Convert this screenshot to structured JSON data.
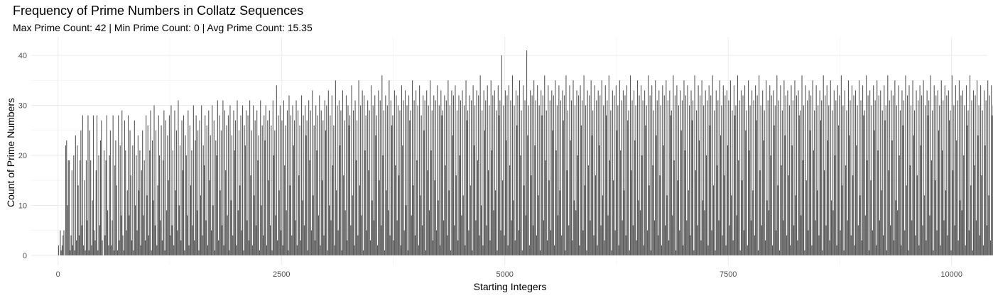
{
  "chart_data": {
    "type": "bar",
    "title": "Frequency of Prime Numbers in Collatz Sequences",
    "subtitle": "Max Prime Count: 42 | Min Prime Count: 0 | Avg Prime Count: 15.35",
    "xlabel": "Starting Integers",
    "ylabel": "Count of Prime Numbers",
    "xlim": [
      -300,
      10400
    ],
    "ylim": [
      -2,
      43.7
    ],
    "x_ticks": [
      0,
      2500,
      5000,
      7500,
      10000
    ],
    "x_tick_labels": [
      "0",
      "2500",
      "5000",
      "7500",
      "10000"
    ],
    "y_ticks": [
      0,
      10,
      20,
      30,
      40
    ],
    "y_tick_labels": [
      "0",
      "10",
      "20",
      "30",
      "40"
    ],
    "grid": true,
    "bar_color": "#595959",
    "x_range": [
      1,
      10000
    ],
    "bin_width": 10,
    "values": [
      2,
      0,
      5,
      1,
      2,
      4,
      5,
      0,
      22,
      23,
      10,
      19,
      19,
      1,
      4,
      17,
      2,
      20,
      1,
      24,
      3,
      22,
      14,
      4,
      19,
      25,
      6,
      28,
      2,
      15,
      1,
      19,
      7,
      28,
      1,
      25,
      19,
      2,
      11,
      28,
      5,
      3,
      17,
      28,
      1,
      20,
      6,
      23,
      27,
      3,
      0,
      21,
      4,
      19,
      28,
      9,
      2,
      20,
      25,
      2,
      7,
      28,
      1,
      18,
      23,
      14,
      1,
      28,
      3,
      22,
      8,
      29,
      4,
      1,
      27,
      21,
      5,
      13,
      28,
      8,
      25,
      16,
      3,
      22,
      1,
      27,
      10,
      20,
      5,
      24,
      13,
      21,
      2,
      17,
      25,
      8,
      19,
      3,
      28,
      12,
      26,
      4,
      21,
      29,
      1,
      23,
      11,
      30,
      6,
      25,
      2,
      14,
      28,
      20,
      7,
      26,
      3,
      19,
      29,
      1,
      27,
      9,
      24,
      15,
      28,
      4,
      30,
      6,
      21,
      2,
      29,
      13,
      25,
      5,
      31,
      10,
      22,
      3,
      27,
      17,
      28,
      1,
      24,
      20,
      8,
      29,
      2,
      26,
      14,
      21,
      6,
      30,
      3,
      23,
      28,
      9,
      25,
      1,
      27,
      12,
      30,
      4,
      22,
      18,
      28,
      7,
      26,
      2,
      29,
      15,
      24,
      5,
      30,
      10,
      27,
      1,
      23,
      20,
      31,
      3,
      28,
      13,
      25,
      6,
      31,
      2,
      29,
      17,
      26,
      8,
      28,
      1,
      30,
      11,
      24,
      4,
      29,
      21,
      27,
      2,
      31,
      9,
      25,
      14,
      28,
      5,
      30,
      1,
      26,
      22,
      29,
      7,
      28,
      3,
      31,
      16,
      25,
      2,
      30,
      12,
      27,
      6,
      29,
      19,
      24,
      1,
      31,
      10,
      26,
      4,
      28,
      23,
      30,
      2,
      27,
      15,
      29,
      6,
      26,
      1,
      31,
      20,
      25,
      8,
      34,
      3,
      28,
      13,
      30,
      5,
      27,
      2,
      31,
      18,
      26,
      9,
      29,
      1,
      32,
      14,
      28,
      4,
      30,
      22,
      27,
      7,
      31,
      2,
      29,
      16,
      26,
      3,
      32,
      11,
      28,
      6,
      30,
      24,
      27,
      1,
      31,
      19,
      29,
      5,
      33,
      12,
      26,
      3,
      30,
      21,
      28,
      8,
      32,
      2,
      29,
      15,
      27,
      4,
      31,
      25,
      30,
      1,
      33,
      10,
      28,
      7,
      32,
      18,
      26,
      2,
      35,
      13,
      30,
      5,
      31,
      22,
      29,
      1,
      33,
      16,
      27,
      9,
      32,
      3,
      30,
      26,
      28,
      6,
      34,
      12,
      29,
      2,
      31,
      19,
      27,
      4,
      35,
      14,
      30,
      8,
      33,
      1,
      32,
      21,
      28,
      5,
      31,
      17,
      29,
      3,
      34,
      11,
      30,
      7,
      32,
      24,
      28,
      2,
      33,
      15,
      31,
      6,
      36,
      20,
      29,
      1,
      32,
      13,
      30,
      9,
      35,
      4,
      31,
      26,
      28,
      3,
      33,
      18,
      32,
      7,
      30,
      16,
      29,
      2,
      34,
      22,
      31,
      5,
      33,
      10,
      30,
      1,
      32,
      27,
      29,
      8,
      35,
      14,
      31,
      4,
      33,
      19,
      30,
      2,
      34,
      12,
      28,
      6,
      32,
      25,
      31,
      1,
      33,
      17,
      30,
      9,
      35,
      21,
      29,
      3,
      32,
      15,
      31,
      5,
      34,
      11,
      30,
      2,
      33,
      28,
      29,
      7,
      32,
      18,
      31,
      4,
      35,
      13,
      30,
      1,
      33,
      24,
      32,
      6,
      34,
      16,
      29,
      3,
      32,
      20,
      31,
      8,
      33,
      12,
      30,
      2,
      35,
      27,
      29,
      5,
      32,
      14,
      31,
      1,
      34,
      22,
      30,
      7,
      33,
      19,
      32,
      4,
      36,
      10,
      29,
      2,
      33,
      25,
      31,
      6,
      34,
      17,
      30,
      3,
      35,
      21,
      32,
      9,
      33,
      13,
      29,
      1,
      34,
      28,
      31,
      5,
      40,
      15,
      30,
      4,
      33,
      23,
      32,
      2,
      34,
      18,
      31,
      7,
      36,
      11,
      30,
      3,
      33,
      26,
      32,
      5,
      35,
      20,
      29,
      1,
      34,
      14,
      31,
      8,
      41,
      24,
      30,
      2,
      33,
      16,
      32,
      6,
      35,
      22,
      31,
      4,
      34,
      12,
      30,
      1,
      33,
      28,
      32,
      7,
      36,
      19,
      29,
      3,
      34,
      15,
      31,
      5,
      33,
      25,
      32,
      2,
      35,
      21,
      30,
      8,
      34,
      13,
      31,
      4,
      33,
      27,
      32,
      1,
      36,
      17,
      29,
      6,
      34,
      23,
      31,
      3,
      35,
      11,
      30,
      9,
      33,
      20,
      32,
      2,
      34,
      26,
      31,
      5,
      36,
      14,
      30,
      1,
      33,
      18,
      32,
      7,
      35,
      24,
      29,
      4,
      34,
      16,
      31,
      2,
      33,
      22,
      32,
      6,
      35,
      12,
      30,
      3,
      34,
      28,
      31,
      8,
      36,
      19,
      29,
      1,
      33,
      15,
      32,
      5,
      34,
      25,
      30,
      2,
      35,
      21,
      31,
      7,
      33,
      13,
      32,
      4,
      34,
      27,
      29,
      1,
      36,
      17,
      31,
      6,
      33,
      23,
      30,
      3,
      35,
      11,
      32,
      9,
      34,
      20,
      31,
      2,
      33,
      26,
      30,
      5,
      36,
      14,
      32,
      1,
      34,
      18,
      29,
      7,
      35,
      24,
      31,
      4,
      33,
      16,
      30,
      2,
      34,
      22,
      32,
      6,
      35,
      12,
      31,
      3,
      33,
      28,
      29,
      8,
      36,
      19,
      32,
      1,
      34,
      15,
      30,
      5,
      33,
      25,
      31,
      2,
      35,
      21,
      32,
      7,
      34,
      13,
      30,
      4,
      33,
      27,
      31,
      1,
      36,
      17,
      29,
      6,
      34,
      23,
      32,
      3,
      35,
      11,
      30,
      9,
      33,
      20,
      31,
      2,
      34,
      26,
      32,
      5,
      36,
      14,
      29,
      1,
      33,
      18,
      31,
      7,
      35,
      24,
      30,
      4,
      34,
      16,
      32,
      2,
      33,
      22,
      31,
      6,
      35,
      12,
      29,
      3,
      34,
      28,
      30,
      8,
      36,
      19,
      31,
      1,
      33,
      15,
      32,
      5,
      34,
      25,
      29,
      2,
      35,
      21,
      30,
      7,
      33,
      13,
      31,
      4,
      34,
      27,
      32,
      1,
      36,
      17,
      30,
      6,
      33,
      23,
      29,
      3,
      35,
      11,
      31,
      9,
      34,
      20,
      32,
      2,
      33,
      26,
      30,
      5,
      36,
      14,
      31,
      1,
      34,
      18,
      29,
      7,
      35,
      24,
      32,
      4,
      33,
      16,
      30,
      2,
      34,
      22,
      31,
      6,
      35,
      12,
      32,
      3,
      33,
      28,
      29,
      8,
      36,
      19,
      30,
      1,
      34,
      15,
      31,
      5,
      33,
      25,
      32,
      2,
      35,
      21,
      29,
      7,
      34,
      13,
      30,
      4,
      33,
      27,
      31,
      1,
      36,
      17,
      32,
      6,
      34,
      23,
      30,
      3,
      35,
      11,
      29,
      9,
      33,
      20,
      31,
      2,
      34,
      26,
      32,
      5,
      36,
      14,
      30,
      1,
      33,
      18,
      29,
      7,
      35,
      24,
      31,
      4,
      34,
      16,
      32,
      2,
      33,
      22,
      30,
      6,
      35,
      12,
      31,
      3,
      34,
      28,
      29,
      8,
      36,
      19,
      32,
      1,
      33,
      15,
      30,
      5,
      34,
      25,
      31,
      2,
      35,
      21,
      32,
      7,
      33,
      13,
      29,
      4,
      34,
      27,
      30,
      1,
      36,
      17,
      31,
      6,
      33,
      23,
      32,
      3,
      35,
      11,
      30,
      9,
      34,
      20,
      29,
      2,
      33,
      26,
      31,
      5,
      36,
      14,
      32,
      1,
      34,
      18,
      30,
      7,
      35,
      24,
      29,
      4,
      33,
      16,
      31,
      2,
      34,
      22,
      32,
      6,
      35,
      12,
      30,
      3,
      33,
      28,
      31,
      8,
      36,
      19,
      29,
      1,
      34,
      15,
      32,
      5,
      33,
      25,
      30,
      2,
      35,
      21,
      31,
      7,
      34,
      13,
      32,
      4,
      33,
      27,
      29,
      1,
      36,
      17,
      30,
      6,
      34,
      23,
      31,
      3,
      35,
      11,
      32,
      9,
      33,
      20,
      30,
      2,
      34,
      26,
      29,
      5,
      36,
      14,
      31,
      1,
      33,
      18,
      32,
      7,
      35,
      24,
      30,
      4,
      34,
      16,
      29,
      2,
      33,
      22,
      31,
      6,
      35,
      12,
      32,
      3,
      34,
      28,
      30,
      8,
      36,
      19,
      31,
      1,
      33,
      15,
      29,
      5,
      34,
      25,
      32,
      2,
      35,
      21,
      30,
      7,
      33,
      13,
      31,
      4,
      34,
      27,
      32,
      1,
      36,
      17,
      29,
      6,
      33,
      23,
      30,
      3,
      35,
      11,
      31,
      9,
      34,
      20,
      32,
      2,
      33,
      26,
      30,
      5,
      36,
      14,
      29,
      1,
      34,
      18,
      31,
      7,
      35,
      24,
      32,
      4,
      33,
      16,
      30,
      2,
      34,
      22,
      29,
      6,
      35,
      12,
      31,
      3,
      33,
      28,
      32,
      8,
      36,
      19,
      30,
      1,
      34,
      15,
      29,
      5,
      33,
      25,
      31,
      2,
      35,
      21,
      32,
      7,
      34,
      13,
      30,
      4,
      33,
      27,
      31,
      1,
      36,
      17,
      32,
      6,
      34,
      23,
      29,
      3,
      35,
      11,
      30,
      9,
      33,
      20,
      31,
      2,
      34,
      26,
      32,
      5,
      36,
      14,
      30,
      1,
      33,
      18,
      29,
      7,
      35,
      24,
      31,
      4,
      34,
      16,
      32,
      2,
      33,
      22,
      30,
      6,
      35,
      12,
      29,
      3,
      34,
      28,
      31,
      8,
      36,
      19,
      32,
      1,
      33,
      15,
      30,
      5,
      34,
      25,
      29,
      2,
      35,
      21,
      31,
      7,
      33,
      13,
      32,
      4,
      34,
      27,
      30,
      1,
      36,
      17,
      31,
      6,
      33,
      23,
      32,
      3,
      35,
      11,
      29,
      9,
      34,
      20,
      30,
      2,
      33,
      26,
      31,
      5,
      36,
      14,
      32,
      1,
      34,
      18,
      30,
      7,
      35,
      24,
      29,
      4,
      33,
      16,
      31,
      2,
      34,
      22,
      32,
      6,
      35,
      12,
      30,
      3,
      33,
      28,
      29,
      8,
      36,
      19,
      31,
      1,
      34,
      15,
      32,
      5,
      33,
      25,
      30,
      2,
      35,
      21,
      29,
      7,
      34,
      13,
      31,
      4,
      33,
      27,
      32,
      1,
      36,
      17,
      30,
      6,
      34,
      23,
      31,
      3,
      35,
      11,
      32,
      9,
      33,
      20,
      29,
      2,
      34,
      26,
      30,
      5,
      36,
      14,
      31,
      1,
      33,
      18,
      32,
      7,
      35,
      24,
      30,
      4,
      34,
      16,
      29,
      2,
      33,
      22,
      31,
      6,
      35,
      12,
      32,
      3,
      34,
      28,
      30,
      8,
      36,
      19,
      29,
      1,
      33,
      15,
      31,
      5,
      34,
      25,
      32,
      2,
      35,
      21,
      30,
      7,
      33,
      13,
      29,
      4,
      34,
      27,
      31,
      1,
      36,
      17,
      32,
      6,
      33,
      23,
      30,
      3,
      35,
      11,
      31,
      9,
      34,
      20,
      32,
      2,
      33,
      26,
      29,
      5,
      36,
      14,
      30,
      1,
      34,
      18,
      31,
      7,
      35,
      24,
      32,
      4,
      33,
      16,
      30,
      2,
      34,
      22,
      29,
      6,
      35,
      12,
      31,
      3,
      33,
      28,
      32,
      8,
      36,
      19,
      30,
      1,
      34,
      15,
      29,
      5,
      33,
      25,
      31,
      2,
      35,
      21,
      32,
      7,
      34,
      13,
      30,
      4,
      33,
      27,
      29,
      1,
      36,
      17,
      31,
      6,
      34,
      23,
      32,
      3,
      35,
      11,
      30,
      9,
      33,
      20,
      31,
      2,
      34,
      26,
      32,
      5,
      36,
      14,
      29,
      1,
      33,
      18,
      30,
      7,
      35,
      24,
      31,
      4,
      34,
      16,
      32,
      2,
      33,
      22,
      30,
      6,
      35,
      12,
      29,
      3,
      34,
      28,
      31,
      8,
      36,
      19,
      32,
      1,
      33,
      15,
      30,
      5,
      34,
      25,
      29,
      2,
      35,
      21,
      31,
      7,
      33,
      13,
      32,
      4,
      34,
      27,
      30,
      1,
      36,
      17,
      31,
      6,
      33,
      23,
      32,
      3,
      35,
      11,
      29,
      9,
      34,
      20,
      30,
      2,
      33,
      26,
      31,
      5,
      36,
      14,
      32,
      1,
      34,
      18,
      30,
      7,
      35,
      24,
      29,
      4,
      33,
      16,
      31,
      2,
      34,
      22,
      32,
      6,
      35,
      12,
      30,
      3,
      33,
      28,
      29,
      8,
      36,
      19,
      31,
      1,
      34,
      15,
      32,
      5,
      33,
      25,
      30,
      2,
      35,
      21,
      29,
      7,
      34,
      13,
      31,
      4,
      33,
      27,
      32,
      1,
      36,
      17,
      30,
      6,
      34,
      23,
      31,
      3,
      35,
      11,
      32,
      9,
      33,
      20,
      29,
      2,
      34,
      26,
      30,
      5,
      36,
      14,
      31,
      1,
      33,
      18,
      32,
      7,
      35,
      24,
      30,
      4,
      34,
      16,
      29,
      2,
      33,
      22,
      31,
      6,
      35,
      12,
      32,
      3,
      34,
      28,
      30,
      8,
      36,
      19,
      29,
      1,
      33,
      15,
      31,
      5,
      34,
      25,
      32,
      2,
      35,
      21,
      30,
      7,
      33,
      13,
      29,
      4,
      34,
      27,
      31,
      1,
      36,
      17,
      32,
      6,
      33,
      23,
      30,
      3,
      35,
      11,
      31,
      9,
      34,
      20,
      32,
      2,
      33,
      26,
      29,
      5,
      36,
      14,
      30,
      1,
      34,
      18,
      31,
      7,
      35,
      24,
      32,
      4,
      33,
      16,
      30,
      2,
      34,
      22,
      29,
      6,
      35,
      12,
      31,
      3,
      33,
      28,
      32,
      8,
      36,
      19,
      30,
      1,
      34,
      15,
      29,
      5,
      33,
      25,
      31,
      2,
      35,
      21,
      32,
      7,
      34,
      13,
      30,
      4,
      33,
      27,
      29,
      1,
      36,
      17,
      31,
      6,
      34,
      23,
      32,
      3,
      35,
      11,
      30,
      9,
      33,
      20,
      31,
      2,
      34,
      26,
      32,
      5,
      36,
      14,
      29,
      1,
      33,
      18,
      30,
      7,
      35,
      24,
      31,
      4,
      34,
      16,
      32,
      2,
      33,
      22,
      30,
      6,
      35,
      12,
      29,
      3,
      34,
      28,
      31,
      8,
      36,
      19,
      32,
      1,
      33,
      15,
      30,
      5,
      34,
      25,
      29,
      2,
      35,
      21,
      31,
      7,
      33,
      13,
      32,
      4,
      34,
      27,
      30,
      1,
      36,
      17,
      31,
      6,
      33,
      23,
      32,
      3,
      35,
      11,
      29,
      9,
      34,
      20,
      30,
      2,
      33,
      26,
      31,
      5,
      34,
      14,
      32,
      1,
      34,
      18,
      30,
      7,
      33,
      24,
      29,
      4,
      27,
      16,
      31,
      2
    ]
  }
}
